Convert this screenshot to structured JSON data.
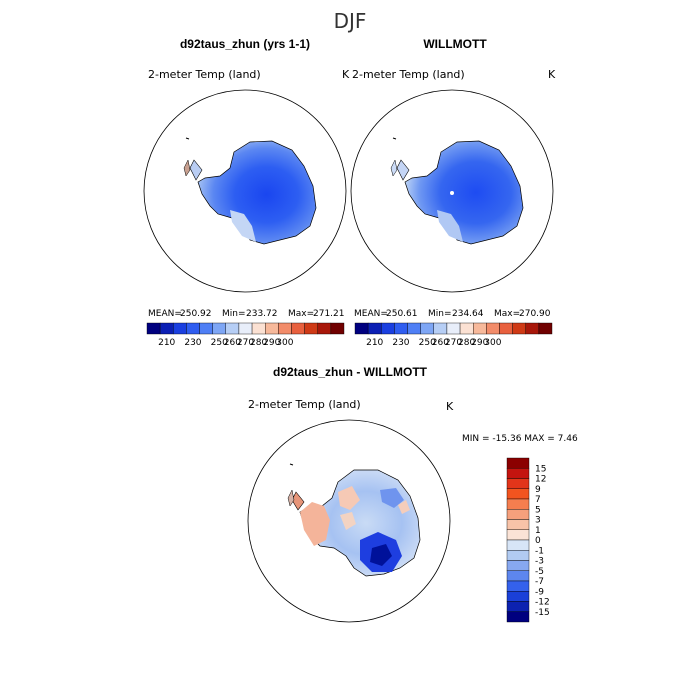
{
  "main_title": "DJF",
  "panel_left": {
    "case_title": "d92taus_zhun (yrs 1-1)",
    "field_label": "2-meter Temp (land)",
    "unit": "K",
    "stats": {
      "mean_label": "MEAN=",
      "mean": "250.92",
      "min_label": "Min=",
      "min": "233.72",
      "max_label": "Max=",
      "max": "271.21"
    },
    "colorbar": {
      "colors": [
        "#00007f",
        "#0b1fb4",
        "#1a3fe0",
        "#2f5df0",
        "#4f7ff5",
        "#7ea6f5",
        "#b6cef5",
        "#e8eefa",
        "#fbe1d3",
        "#f7b99b",
        "#f28c6a",
        "#e8603e",
        "#cf3a16",
        "#a8170a",
        "#700000"
      ],
      "tick_labels": [
        "210",
        "230",
        "250",
        "260",
        "270",
        "280",
        "290",
        "300"
      ]
    }
  },
  "panel_right": {
    "case_title": "WILLMOTT",
    "field_label": "2-meter Temp (land)",
    "unit": "K",
    "stats": {
      "mean_label": "MEAN=",
      "mean": "250.61",
      "min_label": "Min=",
      "min": "234.64",
      "max_label": "Max=",
      "max": "270.90"
    },
    "colorbar": {
      "colors": [
        "#00007f",
        "#0b1fb4",
        "#1a3fe0",
        "#2f5df0",
        "#4f7ff5",
        "#7ea6f5",
        "#b6cef5",
        "#e8eefa",
        "#fbe1d3",
        "#f7b99b",
        "#f28c6a",
        "#e8603e",
        "#cf3a16",
        "#a8170a",
        "#700000"
      ],
      "tick_labels": [
        "210",
        "230",
        "250",
        "260",
        "270",
        "280",
        "290",
        "300"
      ]
    }
  },
  "panel_diff": {
    "case_title": "d92taus_zhun - WILLMOTT",
    "field_label": "2-meter Temp (land)",
    "unit": "K",
    "minmax_text": "MIN = -15.36 MAX = 7.46",
    "colorbar": {
      "colors": [
        "#8b0000",
        "#c4140f",
        "#e2351a",
        "#f2541f",
        "#f57e4f",
        "#f6a07c",
        "#f8c3a8",
        "#fbe3d6",
        "#d7e5f7",
        "#b1cbf2",
        "#87a8f0",
        "#5d86ee",
        "#3461ec",
        "#1a40d8",
        "#0c22b0",
        "#00007f"
      ],
      "tick_labels": [
        "15",
        "12",
        "9",
        "7",
        "5",
        "3",
        "1",
        "0",
        "-1",
        "-3",
        "-5",
        "-7",
        "-9",
        "-12",
        "-15"
      ]
    }
  }
}
